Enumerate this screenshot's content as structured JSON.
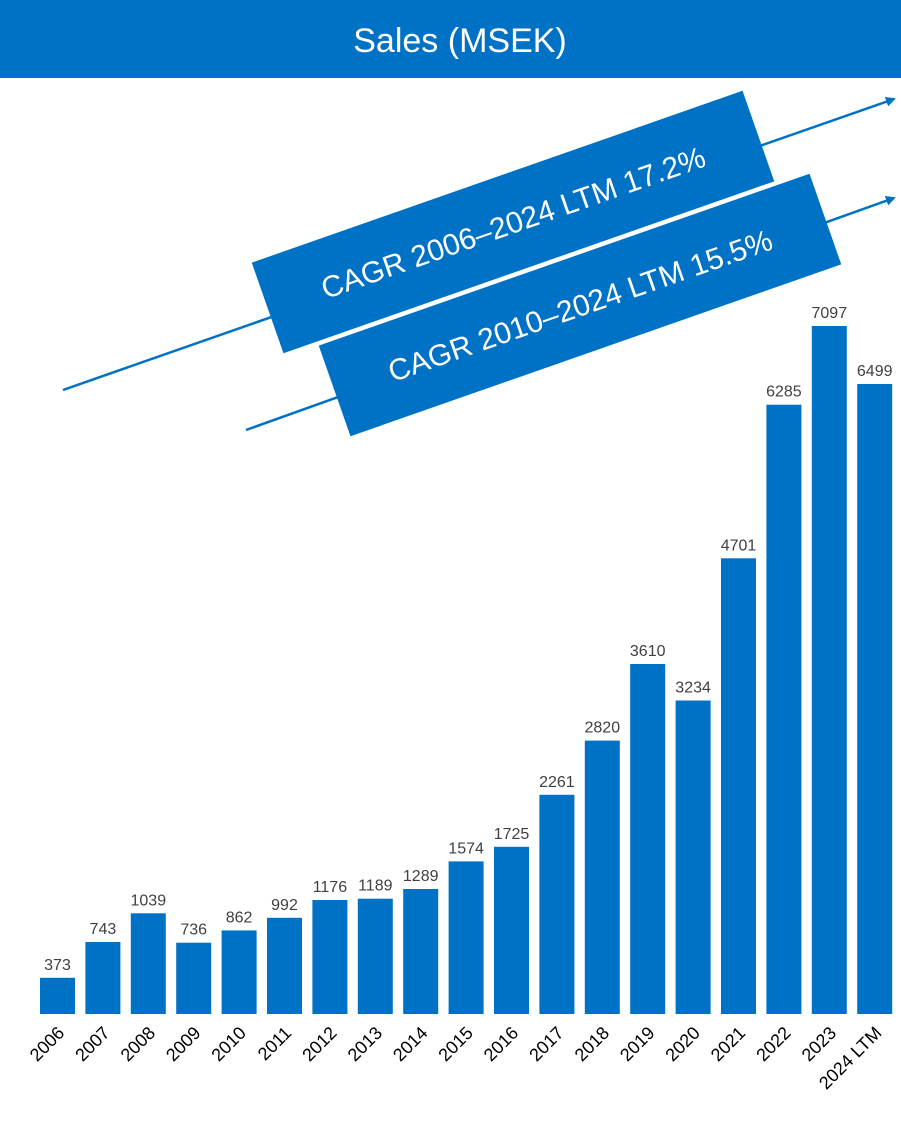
{
  "chart_data": {
    "type": "bar",
    "title": "Sales (MSEK)",
    "xlabel": "",
    "ylabel": "",
    "categories": [
      "2006",
      "2007",
      "2008",
      "2009",
      "2010",
      "2011",
      "2012",
      "2013",
      "2014",
      "2015",
      "2016",
      "2017",
      "2018",
      "2019",
      "2020",
      "2021",
      "2022",
      "2023",
      "2024 LTM"
    ],
    "values": [
      373,
      743,
      1039,
      736,
      862,
      992,
      1176,
      1189,
      1289,
      1574,
      1725,
      2261,
      2820,
      3610,
      3234,
      4701,
      6285,
      7097,
      6499
    ],
    "ylim": [
      0,
      7097
    ],
    "grid": false,
    "legend": "none",
    "annotations": [
      "CAGR 2006–2024 LTM 17.2%",
      "CAGR 2010–2024 LTM 15.5%"
    ]
  },
  "colors": {
    "bar": "#0072C6",
    "title_band": "#0072C6",
    "banner": "#0072C6",
    "arrow": "#0072C6",
    "value_text": "#404040",
    "tick_text": "#000000"
  }
}
